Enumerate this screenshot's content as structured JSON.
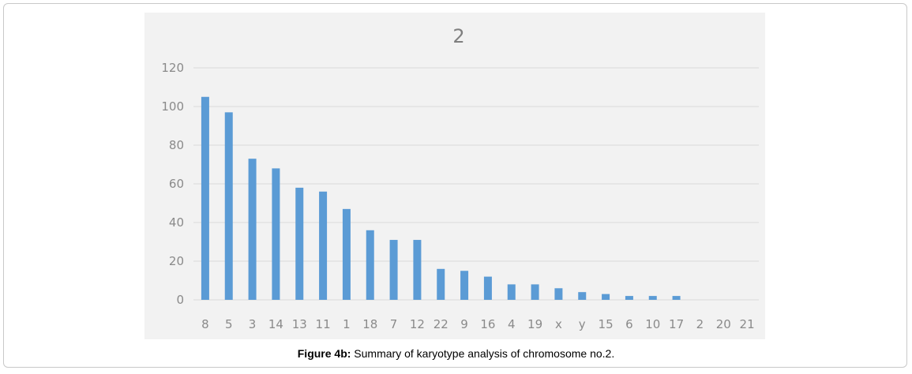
{
  "caption": {
    "label": "Figure 4b:",
    "text": " Summary of karyotype analysis of chromosome no.2."
  },
  "chart_data": {
    "type": "bar",
    "title": "2",
    "xlabel": "",
    "ylabel": "",
    "categories": [
      "8",
      "5",
      "3",
      "14",
      "13",
      "11",
      "1",
      "18",
      "7",
      "12",
      "22",
      "9",
      "16",
      "4",
      "19",
      "x",
      "y",
      "15",
      "6",
      "10",
      "17",
      "2",
      "20",
      "21"
    ],
    "values": [
      105,
      97,
      73,
      68,
      58,
      56,
      47,
      36,
      31,
      31,
      16,
      15,
      12,
      8,
      8,
      6,
      4,
      3,
      2,
      2,
      2,
      0,
      0,
      0
    ],
    "ylim": [
      0,
      120
    ],
    "yticks": [
      0,
      20,
      40,
      60,
      80,
      100,
      120
    ],
    "grid": true,
    "legend": "none",
    "bar_color": "#5b9bd5",
    "grid_color": "#d9d9d9"
  }
}
